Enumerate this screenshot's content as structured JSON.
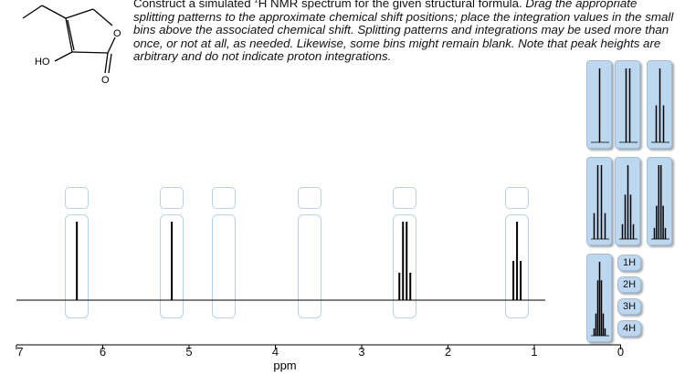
{
  "instructions": {
    "plain_a": "Construct a simulated ",
    "nucleus_sup": "1",
    "plain_b": "H NMR spectrum for the given structural formula. ",
    "italic": "Drag the appropriate splitting patterns to the approximate chemical shift positions; place the integration values in the small bins above the associated chemical shift. Splitting patterns and integrations may be used more than once, or not at all, as needed. Likewise, some bins might remain blank. Note that peak heights are arbitrary and do not indicate proton integrations."
  },
  "structure": {
    "atom_labels": {
      "ring_oxygen": "O",
      "carbonyl_oxygen": "O",
      "hydroxyl": "HO"
    }
  },
  "axis": {
    "title": "ppm",
    "ticks": [
      "7",
      "6",
      "5",
      "4",
      "3",
      "2",
      "1",
      "0"
    ]
  },
  "integration_options": [
    "1H",
    "2H",
    "3H",
    "4H"
  ],
  "palette": [
    "singlet",
    "doublet",
    "triplet",
    "quartet",
    "pentet",
    "sextet",
    "septet"
  ],
  "placed_patterns": [
    {
      "shift_ppm": 6.3,
      "pattern": "singlet",
      "integration": ""
    },
    {
      "shift_ppm": 5.2,
      "pattern": "singlet",
      "integration": ""
    },
    {
      "shift_ppm": 4.6,
      "pattern": "",
      "integration": ""
    },
    {
      "shift_ppm": 3.6,
      "pattern": "",
      "integration": ""
    },
    {
      "shift_ppm": 2.5,
      "pattern": "quartet",
      "integration": ""
    },
    {
      "shift_ppm": 1.2,
      "pattern": "triplet",
      "integration": ""
    }
  ],
  "colors": {
    "tile_fill": "#bcd7ee",
    "tile_border": "#9ebfdc",
    "bin_border": "#b7d3ea"
  }
}
